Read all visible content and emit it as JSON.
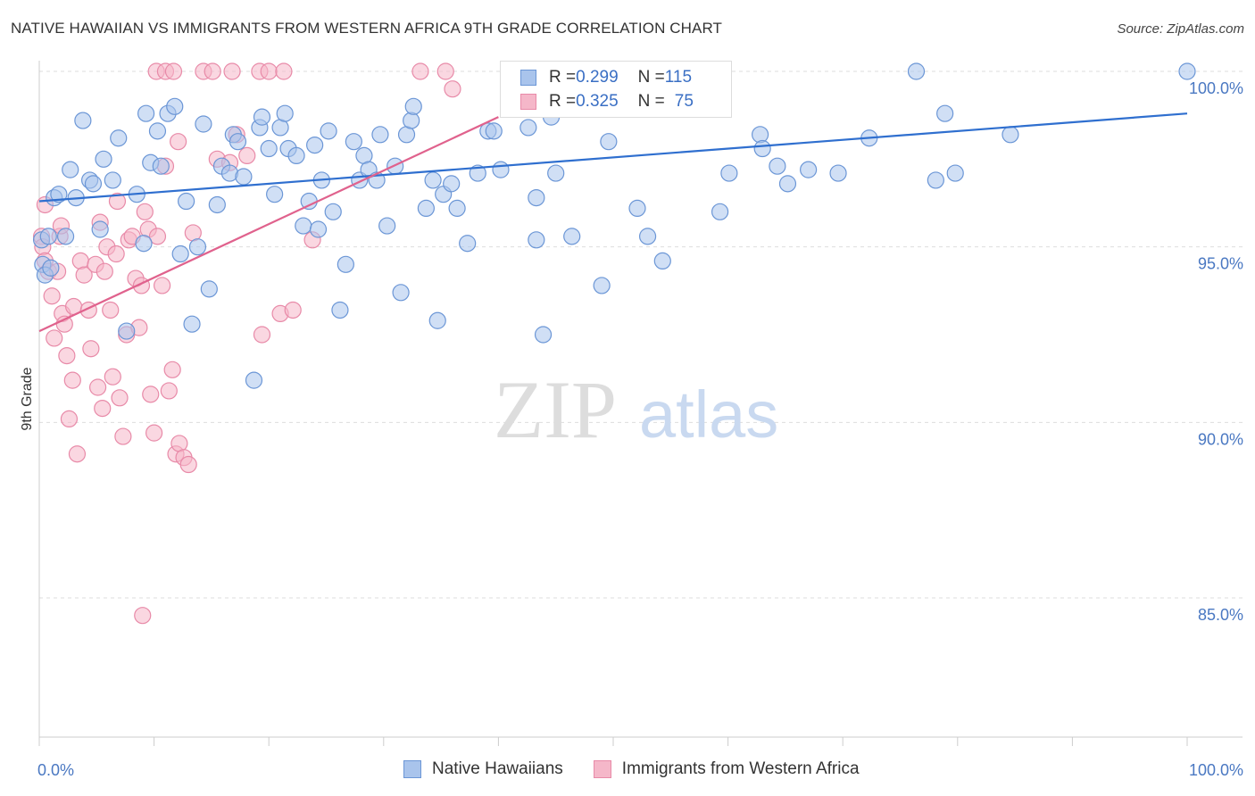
{
  "header": {
    "title": "NATIVE HAWAIIAN VS IMMIGRANTS FROM WESTERN AFRICA 9TH GRADE CORRELATION CHART",
    "source": "Source: ZipAtlas.com"
  },
  "watermark": {
    "zip": "ZIP",
    "atlas": "atlas"
  },
  "legend": {
    "rows": [
      {
        "r_label": "R = ",
        "r_value": "0.299",
        "n_label": "N = ",
        "n_value": "115"
      },
      {
        "r_label": "R = ",
        "r_value": "0.325",
        "n_label": "N = ",
        "n_value": "75"
      }
    ]
  },
  "bottom_legend": [
    "Native Hawaiians",
    "Immigrants from Western Africa"
  ],
  "colors": {
    "blue_fill": "#a9c4ec",
    "blue_stroke": "#6b96d6",
    "blue_line": "#2f6fcf",
    "pink_fill": "#f5b7c9",
    "pink_stroke": "#e88aa8",
    "pink_line": "#e0628d",
    "grid": "#dddddd",
    "axis_text": "#4a78c2"
  },
  "chart_data": {
    "type": "scatter",
    "title": "NATIVE HAWAIIAN VS IMMIGRANTS FROM WESTERN AFRICA 9TH GRADE CORRELATION CHART",
    "xlabel": "",
    "ylabel": "9th Grade",
    "xlim": [
      0,
      100
    ],
    "ylim": [
      80.5,
      100.8
    ],
    "x_tick_labels": [
      "0.0%",
      "100.0%"
    ],
    "y_ticks": [
      85,
      90,
      95,
      100
    ],
    "y_tick_labels": [
      "85.0%",
      "90.0%",
      "95.0%",
      "100.0%"
    ],
    "grid": true,
    "series": [
      {
        "name": "Native Hawaiians",
        "r": 0.299,
        "n": 115,
        "trend": [
          [
            0,
            96.3
          ],
          [
            100,
            98.8
          ]
        ],
        "points": [
          [
            0.2,
            95.2
          ],
          [
            0.3,
            94.5
          ],
          [
            0.5,
            94.2
          ],
          [
            0.8,
            95.3
          ],
          [
            1.0,
            94.4
          ],
          [
            1.3,
            96.4
          ],
          [
            1.7,
            96.5
          ],
          [
            2.3,
            95.3
          ],
          [
            2.7,
            97.2
          ],
          [
            3.2,
            96.4
          ],
          [
            3.8,
            98.6
          ],
          [
            4.4,
            96.9
          ],
          [
            4.7,
            96.8
          ],
          [
            5.3,
            95.5
          ],
          [
            5.6,
            97.5
          ],
          [
            6.4,
            96.9
          ],
          [
            6.9,
            98.1
          ],
          [
            7.6,
            92.6
          ],
          [
            8.5,
            96.5
          ],
          [
            9.1,
            95.1
          ],
          [
            9.3,
            98.8
          ],
          [
            9.7,
            97.4
          ],
          [
            10.3,
            98.3
          ],
          [
            10.6,
            97.3
          ],
          [
            11.2,
            98.8
          ],
          [
            11.8,
            99.0
          ],
          [
            12.3,
            94.8
          ],
          [
            12.8,
            96.3
          ],
          [
            13.3,
            92.8
          ],
          [
            13.8,
            95.0
          ],
          [
            14.3,
            98.5
          ],
          [
            14.8,
            93.8
          ],
          [
            15.5,
            96.2
          ],
          [
            15.9,
            97.3
          ],
          [
            16.6,
            97.1
          ],
          [
            16.9,
            98.2
          ],
          [
            17.3,
            98.0
          ],
          [
            17.8,
            97.0
          ],
          [
            18.7,
            91.2
          ],
          [
            19.2,
            98.4
          ],
          [
            19.4,
            98.7
          ],
          [
            20.0,
            97.8
          ],
          [
            20.5,
            96.5
          ],
          [
            21.0,
            98.4
          ],
          [
            21.4,
            98.8
          ],
          [
            21.7,
            97.8
          ],
          [
            22.4,
            97.6
          ],
          [
            23.0,
            95.6
          ],
          [
            23.5,
            96.3
          ],
          [
            24.0,
            97.9
          ],
          [
            24.3,
            95.5
          ],
          [
            24.6,
            96.9
          ],
          [
            25.2,
            98.3
          ],
          [
            25.6,
            96.0
          ],
          [
            26.2,
            93.2
          ],
          [
            26.7,
            94.5
          ],
          [
            27.4,
            98.0
          ],
          [
            27.9,
            96.9
          ],
          [
            28.3,
            97.6
          ],
          [
            28.7,
            97.2
          ],
          [
            29.4,
            96.9
          ],
          [
            29.7,
            98.2
          ],
          [
            30.3,
            95.6
          ],
          [
            31.0,
            97.3
          ],
          [
            31.5,
            93.7
          ],
          [
            32.0,
            98.2
          ],
          [
            32.4,
            98.6
          ],
          [
            32.6,
            99.0
          ],
          [
            33.7,
            96.1
          ],
          [
            34.3,
            96.9
          ],
          [
            34.7,
            92.9
          ],
          [
            35.2,
            96.5
          ],
          [
            35.9,
            96.8
          ],
          [
            36.4,
            96.1
          ],
          [
            37.3,
            95.1
          ],
          [
            38.2,
            97.1
          ],
          [
            39.1,
            98.3
          ],
          [
            39.6,
            98.3
          ],
          [
            40.2,
            97.2
          ],
          [
            41.0,
            99.2
          ],
          [
            41.3,
            100.0
          ],
          [
            42.6,
            98.4
          ],
          [
            43.3,
            96.4
          ],
          [
            43.3,
            95.2
          ],
          [
            43.9,
            92.5
          ],
          [
            44.6,
            98.7
          ],
          [
            45.0,
            97.1
          ],
          [
            46.4,
            95.3
          ],
          [
            48.3,
            100.0
          ],
          [
            49.0,
            93.9
          ],
          [
            49.6,
            98.0
          ],
          [
            52.1,
            96.1
          ],
          [
            53.0,
            95.3
          ],
          [
            54.3,
            94.6
          ],
          [
            55.1,
            100.0
          ],
          [
            57.8,
            100.0
          ],
          [
            59.3,
            96.0
          ],
          [
            60.1,
            97.1
          ],
          [
            62.8,
            98.2
          ],
          [
            63.0,
            97.8
          ],
          [
            64.3,
            97.3
          ],
          [
            65.2,
            96.8
          ],
          [
            67.0,
            97.2
          ],
          [
            69.6,
            97.1
          ],
          [
            72.3,
            98.1
          ],
          [
            76.4,
            100.0
          ],
          [
            78.1,
            96.9
          ],
          [
            78.9,
            98.8
          ],
          [
            79.8,
            97.1
          ],
          [
            84.6,
            98.2
          ],
          [
            100.0,
            100.0
          ]
        ]
      },
      {
        "name": "Immigrants from Western Africa",
        "r": 0.325,
        "n": 75,
        "trend": [
          [
            0,
            92.6
          ],
          [
            40,
            98.7
          ]
        ],
        "points": [
          [
            0.2,
            95.3
          ],
          [
            0.3,
            95.0
          ],
          [
            0.5,
            94.6
          ],
          [
            0.8,
            94.3
          ],
          [
            1.1,
            93.6
          ],
          [
            1.3,
            92.4
          ],
          [
            1.6,
            94.3
          ],
          [
            1.8,
            95.3
          ],
          [
            2.0,
            93.1
          ],
          [
            2.2,
            92.8
          ],
          [
            2.4,
            91.9
          ],
          [
            2.6,
            90.1
          ],
          [
            2.9,
            91.2
          ],
          [
            3.0,
            93.3
          ],
          [
            3.3,
            89.1
          ],
          [
            3.6,
            94.6
          ],
          [
            3.9,
            94.2
          ],
          [
            4.3,
            93.2
          ],
          [
            4.5,
            92.1
          ],
          [
            4.9,
            94.5
          ],
          [
            5.1,
            91.0
          ],
          [
            5.3,
            95.7
          ],
          [
            5.5,
            90.4
          ],
          [
            5.7,
            94.3
          ],
          [
            5.9,
            95.0
          ],
          [
            6.2,
            93.2
          ],
          [
            6.4,
            91.3
          ],
          [
            6.7,
            94.8
          ],
          [
            7.0,
            90.7
          ],
          [
            7.3,
            89.6
          ],
          [
            7.6,
            92.5
          ],
          [
            7.8,
            95.2
          ],
          [
            8.1,
            95.3
          ],
          [
            8.4,
            94.1
          ],
          [
            8.7,
            92.7
          ],
          [
            8.9,
            93.9
          ],
          [
            9.2,
            96.0
          ],
          [
            9.5,
            95.5
          ],
          [
            9.7,
            90.8
          ],
          [
            10.0,
            89.7
          ],
          [
            10.3,
            95.3
          ],
          [
            10.7,
            93.9
          ],
          [
            11.0,
            97.3
          ],
          [
            11.3,
            90.9
          ],
          [
            11.6,
            91.5
          ],
          [
            11.9,
            89.1
          ],
          [
            12.2,
            89.4
          ],
          [
            12.6,
            89.0
          ],
          [
            13.0,
            88.8
          ],
          [
            13.4,
            95.4
          ],
          [
            10.2,
            100.0
          ],
          [
            11.0,
            100.0
          ],
          [
            11.7,
            100.0
          ],
          [
            14.3,
            100.0
          ],
          [
            15.1,
            100.0
          ],
          [
            16.8,
            100.0
          ],
          [
            19.2,
            100.0
          ],
          [
            20.0,
            100.0
          ],
          [
            21.3,
            100.0
          ],
          [
            33.2,
            100.0
          ],
          [
            35.4,
            100.0
          ],
          [
            36.0,
            99.5
          ],
          [
            12.1,
            98.0
          ],
          [
            15.5,
            97.5
          ],
          [
            16.6,
            97.4
          ],
          [
            17.2,
            98.2
          ],
          [
            18.1,
            97.6
          ],
          [
            19.4,
            92.5
          ],
          [
            21.0,
            93.1
          ],
          [
            22.1,
            93.2
          ],
          [
            23.8,
            95.2
          ],
          [
            0.5,
            96.2
          ],
          [
            1.9,
            95.6
          ],
          [
            6.8,
            96.3
          ],
          [
            9.0,
            84.5
          ]
        ]
      }
    ]
  }
}
